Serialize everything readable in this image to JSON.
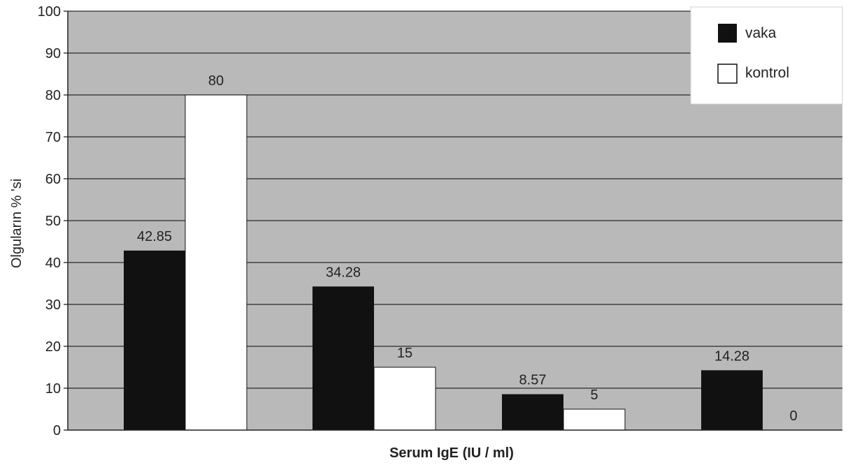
{
  "chart_data": {
    "type": "bar",
    "xlabel": "Serum IgE (IU / ml)",
    "ylabel": "Olguların % 'si",
    "ylim": [
      0,
      100
    ],
    "yticks": [
      0,
      10,
      20,
      30,
      40,
      50,
      60,
      70,
      80,
      90,
      100
    ],
    "grid": true,
    "legend_position": "top-right",
    "series": [
      {
        "name": "vaka",
        "color": "#111111",
        "values": [
          42.85,
          34.28,
          8.57,
          14.28
        ],
        "labels": [
          "42.85",
          "34.28",
          "8.57",
          "14.28"
        ]
      },
      {
        "name": "kontrol",
        "color": "#ffffff",
        "values": [
          80,
          15,
          5,
          0
        ],
        "labels": [
          "80",
          "15",
          "5",
          "0"
        ]
      }
    ]
  },
  "colors": {
    "plot_background": "#b9b9b9",
    "gridline": "#2a2a2a",
    "vaka": "#111111",
    "kontrol": "#ffffff"
  }
}
